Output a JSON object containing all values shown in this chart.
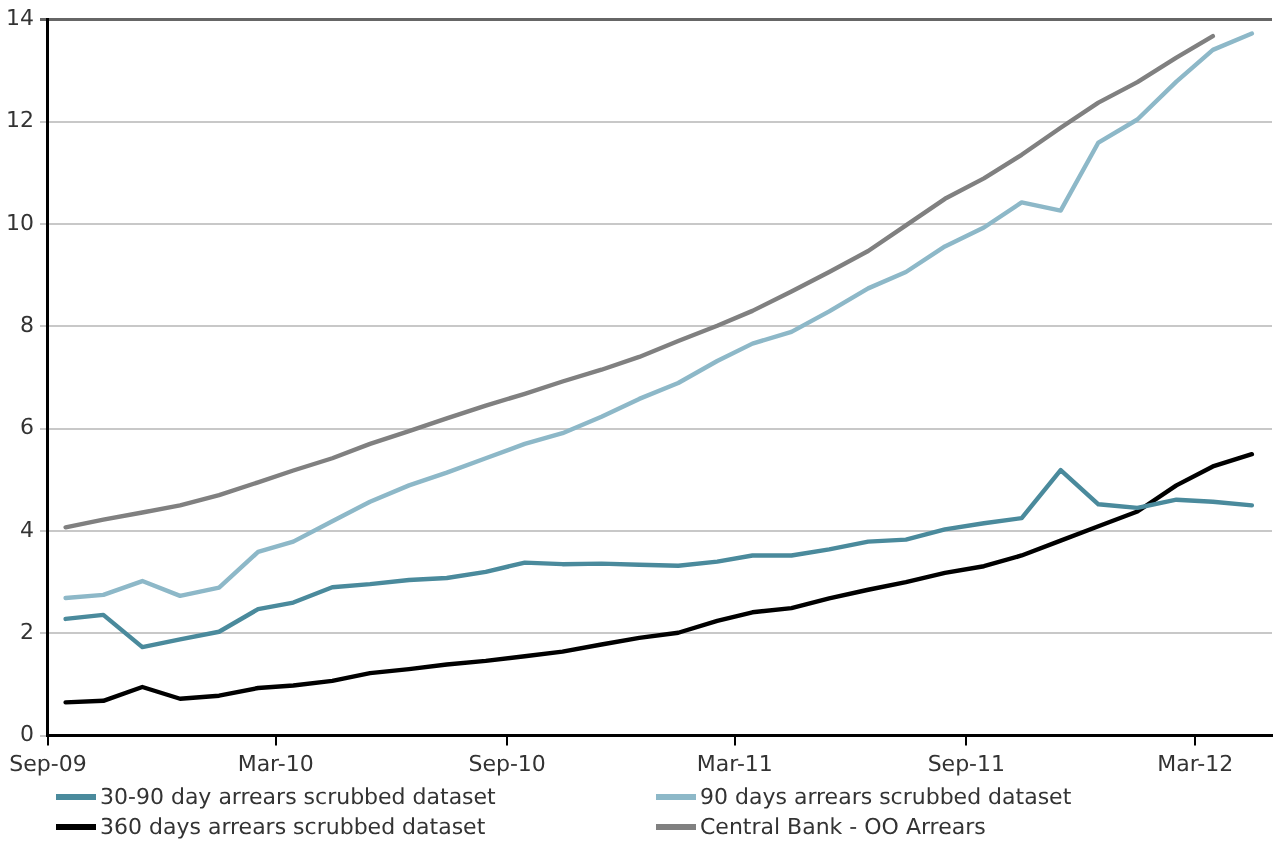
{
  "chart_data": {
    "type": "line",
    "x": [
      "2009-09-15",
      "2009-10-15",
      "2009-11-15",
      "2009-12-15",
      "2010-01-15",
      "2010-02-15",
      "2010-03-15",
      "2010-04-15",
      "2010-05-15",
      "2010-06-15",
      "2010-07-15",
      "2010-08-15",
      "2010-09-15",
      "2010-10-15",
      "2010-11-15",
      "2010-12-15",
      "2011-01-15",
      "2011-02-15",
      "2011-03-15",
      "2011-04-15",
      "2011-05-15",
      "2011-06-15",
      "2011-07-15",
      "2011-08-15",
      "2011-09-15",
      "2011-10-15",
      "2011-11-15",
      "2011-12-15",
      "2012-01-15",
      "2012-02-15",
      "2012-03-15",
      "2012-04-15"
    ],
    "series": [
      {
        "name": "30-90 day arrears scrubbed dataset",
        "color": "#4a8a9c",
        "values": [
          2.28,
          2.36,
          1.73,
          1.88,
          2.03,
          2.47,
          2.6,
          2.9,
          2.96,
          3.04,
          3.08,
          3.2,
          3.38,
          3.35,
          3.36,
          3.34,
          3.32,
          3.4,
          3.52,
          3.52,
          3.64,
          3.79,
          3.83,
          4.03,
          4.15,
          4.25,
          5.19,
          4.52,
          4.45,
          4.61,
          4.57,
          4.5
        ]
      },
      {
        "name": "90 days arrears scrubbed dataset",
        "color": "#8db8c8",
        "values": [
          2.69,
          2.75,
          3.02,
          2.73,
          2.89,
          3.59,
          3.79,
          4.19,
          4.57,
          4.89,
          5.14,
          5.42,
          5.7,
          5.91,
          6.23,
          6.58,
          6.89,
          7.32,
          7.66,
          7.89,
          8.29,
          8.74,
          9.06,
          9.56,
          9.93,
          10.42,
          10.26,
          11.59,
          12.04,
          12.78,
          13.4,
          13.72
        ]
      },
      {
        "name": "360 days arrears scrubbed dataset",
        "color": "#000000",
        "values": [
          0.65,
          0.68,
          0.95,
          0.72,
          0.78,
          0.93,
          0.98,
          1.07,
          1.22,
          1.3,
          1.39,
          1.46,
          1.55,
          1.64,
          1.78,
          1.91,
          2.01,
          2.24,
          2.41,
          2.49,
          2.68,
          2.85,
          3.0,
          3.18,
          3.31,
          3.52,
          3.81,
          4.09,
          4.38,
          4.89,
          5.26,
          5.5
        ]
      },
      {
        "name": "Central Bank - OO Arrears",
        "color": "#808080",
        "values": [
          4.07,
          4.22,
          4.36,
          4.5,
          4.7,
          4.95,
          5.18,
          5.42,
          5.7,
          5.95,
          6.2,
          6.45,
          6.68,
          6.92,
          7.15,
          7.4,
          7.71,
          8.01,
          8.3,
          8.68,
          9.06,
          9.47,
          9.97,
          10.49,
          10.89,
          11.35,
          11.88,
          12.37,
          12.77,
          13.25,
          13.67,
          null
        ]
      }
    ],
    "xlim": [
      "2009-09-01",
      "2012-05-01"
    ],
    "xticks": [
      {
        "value": "2009-09-01",
        "label": "Sep-09"
      },
      {
        "value": "2010-03-01",
        "label": "Mar-10"
      },
      {
        "value": "2010-09-01",
        "label": "Sep-10"
      },
      {
        "value": "2011-03-01",
        "label": "Mar-11"
      },
      {
        "value": "2011-09-01",
        "label": "Sep-11"
      },
      {
        "value": "2012-03-01",
        "label": "Mar-12"
      }
    ],
    "ylim": [
      0,
      14
    ],
    "yticks": [
      0,
      2,
      4,
      6,
      8,
      10,
      12,
      14
    ],
    "grid": "y",
    "legend": "bottom",
    "marker": "none",
    "line_style": "solid"
  }
}
